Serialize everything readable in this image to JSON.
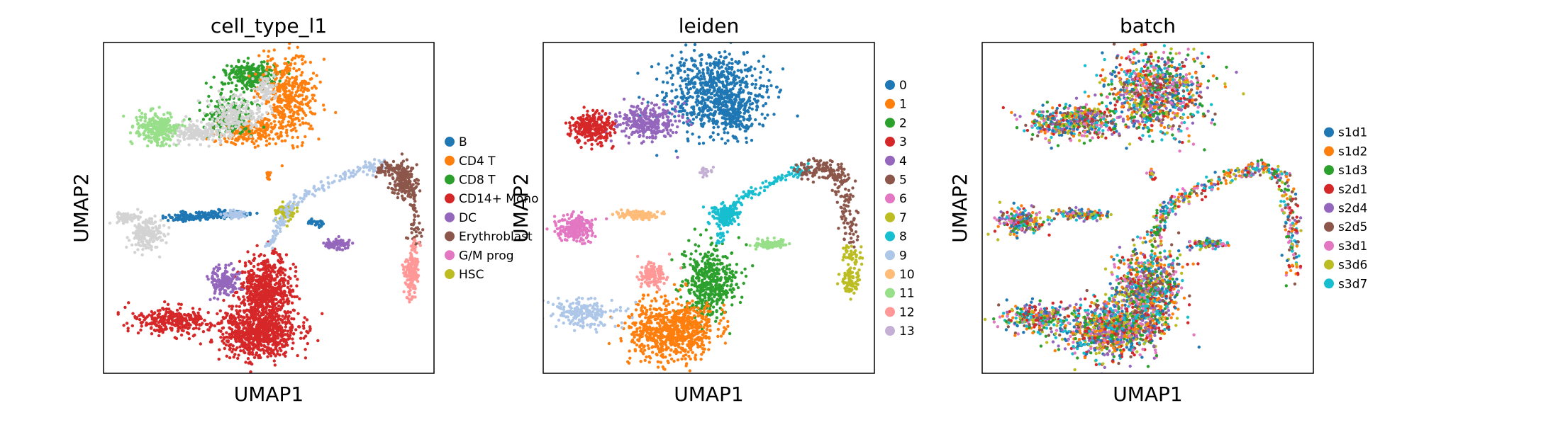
{
  "chart_data": [
    {
      "type": "scatter",
      "title": "cell_type_l1",
      "xlabel": "UMAP1",
      "ylabel": "UMAP2",
      "legend_position": "right",
      "series": [
        {
          "name": "B",
          "color": "#1f77b4"
        },
        {
          "name": "CD4 T",
          "color": "#ff7f0e"
        },
        {
          "name": "CD8 T",
          "color": "#2ca02c"
        },
        {
          "name": "CD14+ Mono",
          "color": "#d62728"
        },
        {
          "name": "DC",
          "color": "#9467bd"
        },
        {
          "name": "Erythroblast",
          "color": "#8c564b"
        },
        {
          "name": "G/M prog",
          "color": "#e377c2"
        },
        {
          "name": "HSC",
          "color": "#bcbd22"
        }
      ],
      "blobs": [
        {
          "c": 2,
          "cx": 0.45,
          "cy": 0.1,
          "rx": 0.08,
          "ry": 0.04,
          "n": 260
        },
        {
          "c": 1,
          "cx": 0.56,
          "cy": 0.16,
          "rx": 0.09,
          "ry": 0.13,
          "n": 420
        },
        {
          "c": 1,
          "cx": 0.43,
          "cy": 0.27,
          "rx": 0.09,
          "ry": 0.04,
          "n": 200
        },
        {
          "c": 2,
          "cx": 0.38,
          "cy": 0.22,
          "rx": 0.08,
          "ry": 0.06,
          "n": 180
        },
        {
          "c": -1,
          "cx": 0.4,
          "cy": 0.22,
          "rx": 0.08,
          "ry": 0.05,
          "n": 200
        },
        {
          "c": -1,
          "cx": 0.28,
          "cy": 0.27,
          "rx": 0.09,
          "ry": 0.03,
          "n": 160
        },
        {
          "c": -1,
          "cx": 0.49,
          "cy": 0.14,
          "rx": 0.03,
          "ry": 0.04,
          "n": 80
        },
        {
          "c": -2,
          "cx": 0.16,
          "cy": 0.26,
          "rx": 0.06,
          "ry": 0.05,
          "n": 260
        },
        {
          "c": -1,
          "cx": 0.07,
          "cy": 0.53,
          "rx": 0.03,
          "ry": 0.015,
          "n": 80
        },
        {
          "c": -1,
          "cx": 0.13,
          "cy": 0.58,
          "rx": 0.05,
          "ry": 0.05,
          "n": 180
        },
        {
          "c": 0,
          "cx": 0.34,
          "cy": 0.52,
          "rx": 0.1,
          "ry": 0.012,
          "n": 120
        },
        {
          "c": 0,
          "cx": 0.24,
          "cy": 0.53,
          "rx": 0.06,
          "ry": 0.012,
          "n": 80
        },
        {
          "c": -3,
          "cx": 0.4,
          "cy": 0.52,
          "rx": 0.04,
          "ry": 0.012,
          "n": 60
        },
        {
          "c": 7,
          "cx": 0.55,
          "cy": 0.51,
          "rx": 0.03,
          "ry": 0.025,
          "n": 80
        },
        {
          "c": 4,
          "cx": 0.71,
          "cy": 0.61,
          "rx": 0.04,
          "ry": 0.015,
          "n": 90
        },
        {
          "c": 3,
          "cx": 0.47,
          "cy": 0.88,
          "rx": 0.12,
          "ry": 0.07,
          "n": 700
        },
        {
          "c": 3,
          "cx": 0.21,
          "cy": 0.84,
          "rx": 0.12,
          "ry": 0.04,
          "n": 300
        },
        {
          "c": 3,
          "cx": 0.49,
          "cy": 0.75,
          "rx": 0.08,
          "ry": 0.1,
          "n": 600
        },
        {
          "c": 4,
          "cx": 0.36,
          "cy": 0.72,
          "rx": 0.05,
          "ry": 0.04,
          "n": 150
        },
        {
          "c": 5,
          "cx": 0.91,
          "cy": 0.42,
          "rx": 0.04,
          "ry": 0.05,
          "n": 150
        },
        {
          "c": -4,
          "cx": 0.93,
          "cy": 0.7,
          "rx": 0.02,
          "ry": 0.05,
          "n": 120
        },
        {
          "c": 1,
          "cx": 0.5,
          "cy": 0.4,
          "rx": 0.01,
          "ry": 0.01,
          "n": 15
        }
      ],
      "curves": [
        {
          "c": 0,
          "pts": [
            [
              0.62,
              0.54
            ],
            [
              0.67,
              0.55
            ]
          ],
          "n": 30,
          "w": 0.006
        },
        {
          "c": -3,
          "pts": [
            [
              0.5,
              0.62
            ],
            [
              0.53,
              0.55
            ],
            [
              0.56,
              0.5
            ],
            [
              0.63,
              0.45
            ],
            [
              0.72,
              0.4
            ],
            [
              0.8,
              0.38
            ],
            [
              0.85,
              0.37
            ]
          ],
          "n": 180,
          "w": 0.008
        },
        {
          "c": 5,
          "pts": [
            [
              0.83,
              0.39
            ],
            [
              0.88,
              0.38
            ],
            [
              0.92,
              0.4
            ],
            [
              0.94,
              0.5
            ],
            [
              0.95,
              0.62
            ]
          ],
          "n": 150,
          "w": 0.012
        },
        {
          "c": -4,
          "pts": [
            [
              0.94,
              0.6
            ],
            [
              0.94,
              0.7
            ],
            [
              0.93,
              0.78
            ]
          ],
          "n": 80,
          "w": 0.008
        }
      ]
    },
    {
      "type": "scatter",
      "title": "leiden",
      "xlabel": "UMAP1",
      "ylabel": "UMAP2",
      "legend_position": "right",
      "series": [
        {
          "name": "0",
          "color": "#1f77b4"
        },
        {
          "name": "1",
          "color": "#ff7f0e"
        },
        {
          "name": "2",
          "color": "#2ca02c"
        },
        {
          "name": "3",
          "color": "#d62728"
        },
        {
          "name": "4",
          "color": "#9467bd"
        },
        {
          "name": "5",
          "color": "#8c564b"
        },
        {
          "name": "6",
          "color": "#e377c2"
        },
        {
          "name": "7",
          "color": "#bcbd22"
        },
        {
          "name": "8",
          "color": "#17becf"
        },
        {
          "name": "9",
          "color": "#aec7e8"
        },
        {
          "name": "10",
          "color": "#ffbb78"
        },
        {
          "name": "11",
          "color": "#98df8a"
        },
        {
          "name": "12",
          "color": "#ff9896"
        },
        {
          "name": "13",
          "color": "#c5b0d5"
        }
      ],
      "blobs": [
        {
          "c": 0,
          "cx": 0.52,
          "cy": 0.15,
          "rx": 0.15,
          "ry": 0.12,
          "n": 700
        },
        {
          "c": 0,
          "cx": 0.57,
          "cy": 0.22,
          "rx": 0.06,
          "ry": 0.06,
          "n": 150
        },
        {
          "c": 4,
          "cx": 0.31,
          "cy": 0.24,
          "rx": 0.1,
          "ry": 0.05,
          "n": 300
        },
        {
          "c": 3,
          "cx": 0.15,
          "cy": 0.26,
          "rx": 0.06,
          "ry": 0.05,
          "n": 260
        },
        {
          "c": 13,
          "cx": 0.49,
          "cy": 0.39,
          "rx": 0.02,
          "ry": 0.015,
          "n": 20
        },
        {
          "c": 6,
          "cx": 0.1,
          "cy": 0.56,
          "rx": 0.06,
          "ry": 0.04,
          "n": 220
        },
        {
          "c": 10,
          "cx": 0.28,
          "cy": 0.52,
          "rx": 0.06,
          "ry": 0.015,
          "n": 100
        },
        {
          "c": 8,
          "cx": 0.55,
          "cy": 0.52,
          "rx": 0.04,
          "ry": 0.03,
          "n": 130
        },
        {
          "c": 11,
          "cx": 0.69,
          "cy": 0.61,
          "rx": 0.05,
          "ry": 0.015,
          "n": 100
        },
        {
          "c": 2,
          "cx": 0.5,
          "cy": 0.73,
          "rx": 0.08,
          "ry": 0.11,
          "n": 450
        },
        {
          "c": 1,
          "cx": 0.39,
          "cy": 0.87,
          "rx": 0.13,
          "ry": 0.09,
          "n": 750
        },
        {
          "c": 9,
          "cx": 0.12,
          "cy": 0.82,
          "rx": 0.1,
          "ry": 0.04,
          "n": 200
        },
        {
          "c": 12,
          "cx": 0.33,
          "cy": 0.7,
          "rx": 0.04,
          "ry": 0.04,
          "n": 130
        }
      ],
      "curves": [
        {
          "c": 8,
          "pts": [
            [
              0.53,
              0.6
            ],
            [
              0.55,
              0.52
            ],
            [
              0.6,
              0.47
            ],
            [
              0.68,
              0.43
            ],
            [
              0.76,
              0.39
            ],
            [
              0.8,
              0.38
            ]
          ],
          "n": 140,
          "w": 0.008
        },
        {
          "c": 5,
          "pts": [
            [
              0.78,
              0.39
            ],
            [
              0.84,
              0.38
            ],
            [
              0.9,
              0.4
            ],
            [
              0.92,
              0.5
            ],
            [
              0.93,
              0.6
            ]
          ],
          "n": 220,
          "w": 0.015
        },
        {
          "c": 7,
          "pts": [
            [
              0.93,
              0.62
            ],
            [
              0.93,
              0.7
            ],
            [
              0.93,
              0.75
            ]
          ],
          "n": 120,
          "w": 0.014
        }
      ]
    },
    {
      "type": "scatter",
      "title": "batch",
      "xlabel": "UMAP1",
      "ylabel": "UMAP2",
      "legend_position": "right",
      "series": [
        {
          "name": "s1d1",
          "color": "#1f77b4"
        },
        {
          "name": "s1d2",
          "color": "#ff7f0e"
        },
        {
          "name": "s1d3",
          "color": "#2ca02c"
        },
        {
          "name": "s2d1",
          "color": "#d62728"
        },
        {
          "name": "s2d4",
          "color": "#9467bd"
        },
        {
          "name": "s2d5",
          "color": "#8c564b"
        },
        {
          "name": "s3d1",
          "color": "#e377c2"
        },
        {
          "name": "s3d6",
          "color": "#bcbd22"
        },
        {
          "name": "s3d7",
          "color": "#17becf"
        }
      ],
      "blobs": [
        {
          "c": -9,
          "cx": 0.52,
          "cy": 0.15,
          "rx": 0.15,
          "ry": 0.12,
          "n": 900
        },
        {
          "c": -9,
          "cx": 0.28,
          "cy": 0.24,
          "rx": 0.14,
          "ry": 0.05,
          "n": 500
        },
        {
          "c": -9,
          "cx": 0.12,
          "cy": 0.54,
          "rx": 0.07,
          "ry": 0.04,
          "n": 220
        },
        {
          "c": -9,
          "cx": 0.3,
          "cy": 0.52,
          "rx": 0.08,
          "ry": 0.015,
          "n": 120
        },
        {
          "c": -9,
          "cx": 0.68,
          "cy": 0.61,
          "rx": 0.05,
          "ry": 0.015,
          "n": 100
        },
        {
          "c": -9,
          "cx": 0.5,
          "cy": 0.75,
          "rx": 0.1,
          "ry": 0.12,
          "n": 800
        },
        {
          "c": -9,
          "cx": 0.39,
          "cy": 0.87,
          "rx": 0.14,
          "ry": 0.08,
          "n": 900
        },
        {
          "c": -9,
          "cx": 0.16,
          "cy": 0.83,
          "rx": 0.1,
          "ry": 0.04,
          "n": 300
        },
        {
          "c": -9,
          "cx": 0.51,
          "cy": 0.4,
          "rx": 0.015,
          "ry": 0.015,
          "n": 20
        }
      ],
      "curves": [
        {
          "c": -9,
          "pts": [
            [
              0.52,
              0.6
            ],
            [
              0.54,
              0.52
            ],
            [
              0.6,
              0.47
            ],
            [
              0.68,
              0.43
            ],
            [
              0.78,
              0.39
            ],
            [
              0.85,
              0.38
            ],
            [
              0.91,
              0.4
            ],
            [
              0.93,
              0.5
            ],
            [
              0.94,
              0.6
            ],
            [
              0.94,
              0.72
            ]
          ],
          "n": 450,
          "w": 0.012
        }
      ]
    }
  ]
}
